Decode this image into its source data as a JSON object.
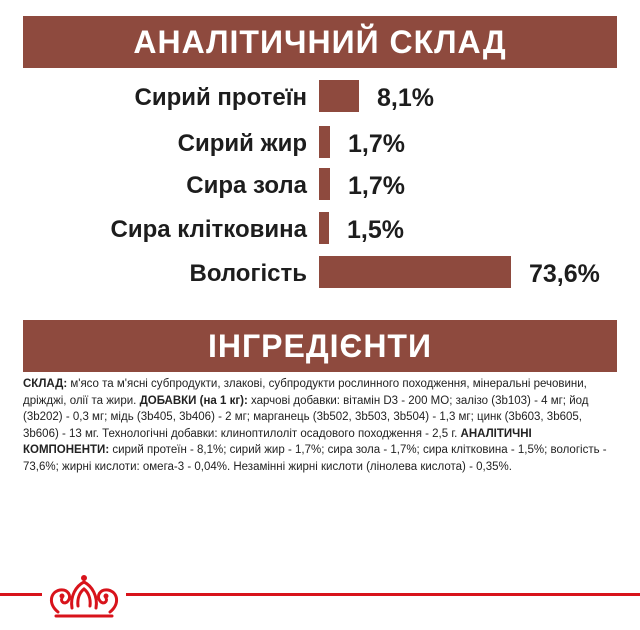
{
  "header": {
    "title": "АНАЛІТИЧНИЙ СКЛАД"
  },
  "analytics": [
    {
      "label": "Сирий протеїн",
      "value": "8,1%",
      "percent": 8.1
    },
    {
      "label": "Сирий жир",
      "value": "1,7%",
      "percent": 1.7
    },
    {
      "label": "Сира зола",
      "value": "1,7%",
      "percent": 1.7
    },
    {
      "label": "Сира клітковина",
      "value": "1,5%",
      "percent": 1.5
    },
    {
      "label": "Вологість",
      "value": "73,6%",
      "percent": 73.6
    }
  ],
  "ingredients": {
    "title": "ІНГРЕДІЄНТИ",
    "composition_label": "СКЛАД:",
    "composition_text": " м'ясо та м'ясні субпродукти, злакові, субпродукти рослинного походження, мінеральні речовини, дріжджі, олії та жири. ",
    "additives_label": "ДОБАВКИ (на 1 кг):",
    "additives_text": " харчові добавки: вітамін D3 - 200 МО; залізо (3b103) - 4 мг; йод (3b202) - 0,3 мг; мідь (3b405, 3b406) - 2 мг; марганець (3b502, 3b503, 3b504) - 1,3 мг; цинк (3b603, 3b605, 3b606) - 13 мг. Технологічні добавки: клиноптилоліт осадового походження - 2,5 г. ",
    "analytic_label": "АНАЛІТИЧНІ КОМПОНЕНТИ:",
    "analytic_text": " сирий протеїн - 8,1%; сирий жир - 1,7%; сира зола - 1,7%; сира клітковина - 1,5%; вологість - 73,6%; жирні кислоти: омега-3 - 0,04%. Незамінні жирні кислоти (лінолева кислота) - 0,35%."
  },
  "brand": {
    "logo": "crown-logo",
    "accent_color": "#d8131b",
    "bar_color": "#8e4a3e"
  }
}
